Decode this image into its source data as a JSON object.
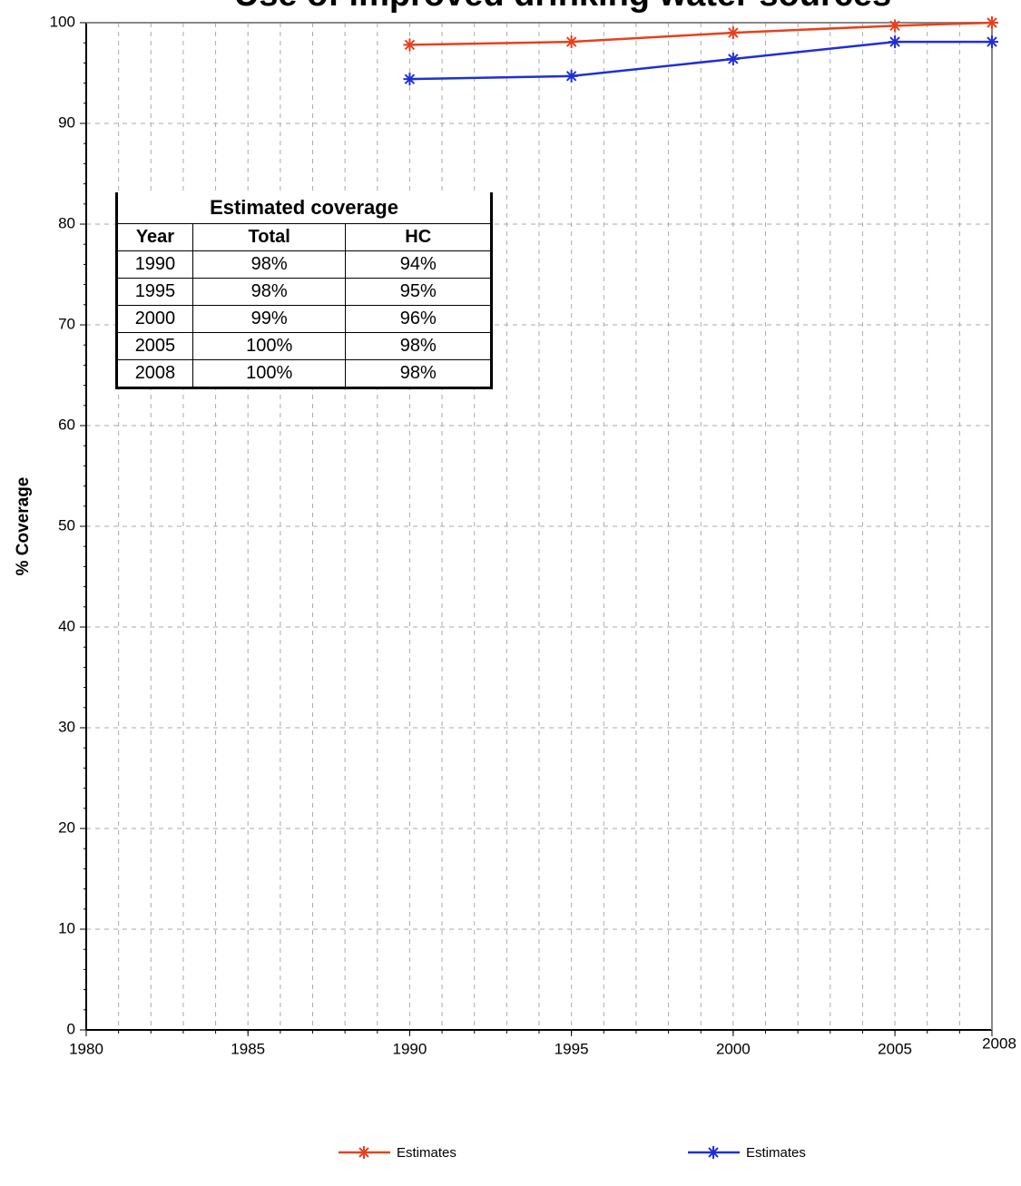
{
  "chart_data": {
    "type": "line",
    "title": "Use of improved drinking water sources",
    "ylabel": "% Coverage",
    "xlim": [
      1980,
      2008
    ],
    "xticks": [
      1980,
      1985,
      1990,
      1995,
      2000,
      2005,
      2008
    ],
    "ylim": [
      0,
      100
    ],
    "yticks": [
      0,
      10,
      20,
      30,
      40,
      50,
      60,
      70,
      80,
      90,
      100
    ],
    "grid": true,
    "series": [
      {
        "name": "Estimates",
        "color": "#e8401c",
        "x": [
          1990,
          1995,
          2000,
          2005,
          2008
        ],
        "values": [
          97.8,
          98.1,
          99,
          99.7,
          100
        ]
      },
      {
        "name": "Estimates",
        "color": "#1f2fd6",
        "x": [
          1990,
          1995,
          2000,
          2005,
          2008
        ],
        "values": [
          94.4,
          94.7,
          96.4,
          98.1,
          98.1
        ]
      }
    ]
  },
  "table": {
    "title": "Estimated coverage",
    "header": [
      "Year",
      "Total",
      "HC"
    ],
    "rows": [
      [
        "1990",
        "98%",
        "94%"
      ],
      [
        "1995",
        "98%",
        "95%"
      ],
      [
        "2000",
        "99%",
        "96%"
      ],
      [
        "2005",
        "100%",
        "98%"
      ],
      [
        "2008",
        "100%",
        "98%"
      ]
    ]
  }
}
